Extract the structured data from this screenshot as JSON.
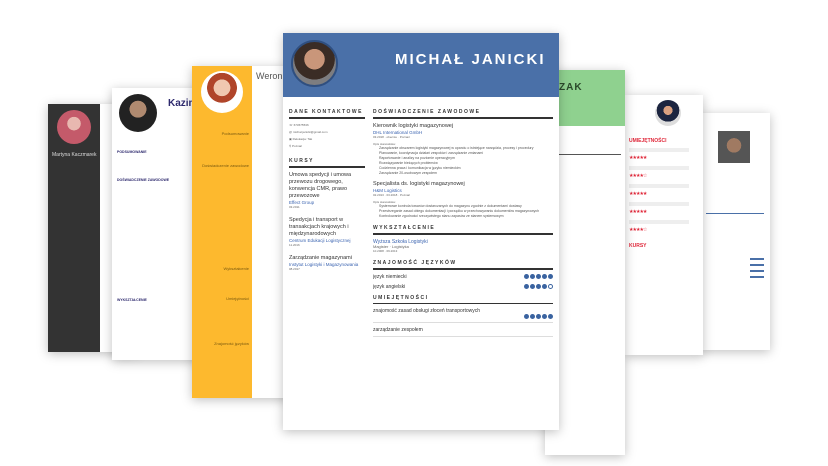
{
  "main_cv": {
    "name": "MICHAŁ JANICKI",
    "contact_title": "DANE KONTAKTOWE",
    "contact": [
      {
        "icon": "phone-icon",
        "text": "673675536"
      },
      {
        "icon": "at-icon",
        "text": "michal.janicki@gmail.com"
      },
      {
        "icon": "briefcase-icon",
        "text": "Relokacja: Tak"
      },
      {
        "icon": "location-icon",
        "text": "Poznań"
      }
    ],
    "courses_title": "KURSY",
    "courses": [
      {
        "name": "Umowa spedycji i umowa przewozu drogowego, konwencja CMR, prawo przewozowe",
        "org": "Effect Group",
        "date": "03.2011"
      },
      {
        "name": "Spedycja i transport w transakcjach krajowych i międzynarodowych",
        "org": "Centrum Edukacji Logistycznej",
        "date": "11.2016"
      },
      {
        "name": "Zarządzanie magazynami",
        "org": "Instytut Logistyki i Magazynowania",
        "date": "08.2017"
      }
    ],
    "experience_title": "DOŚWIADCZENIE ZAWODOWE",
    "jobs": [
      {
        "title": "Kierownik logistyki magazynowej",
        "company": "DHL International GmbH",
        "dates": "03.2018 · obecnie",
        "place": "Poznań",
        "desc_label": "Opis stanowiska:",
        "bullets": [
          "Zarządzanie obszarem logistyki magazynowej w oparciu o istniejące narzędzia, procesy i procedury",
          "Planowanie, koordynacja działań zespołów i zarządzanie zmianami",
          "Raportowanie i analizy na poziomie operacyjnym",
          "Rozwiązywanie bieżących problemów",
          "Codzienna praca i komunikacja w języku niemieckim",
          "Zarządzanie 20-osobowym zespołem"
        ]
      },
      {
        "title": "Specjalista ds. logistyki magazynowej",
        "company": "H&M Logistics",
        "dates": "02.2013 · 03.2018",
        "place": "Poznań",
        "desc_label": "Opis stanowiska:",
        "bullets": [
          "Systemowe kontrola towarów dostarczanych do magazynu zgodnie z dokumentami dostawy",
          "Przestrzeganie zasad obiegu dokumentacji i porządku w przechowywaniu dokumentów magazynowych",
          "Kontrolowanie zgodności rzeczywistego stanu zapasów ze stanem systemowym"
        ]
      }
    ],
    "education_title": "WYKSZTAŁCENIE",
    "education": {
      "school": "Wyższa Szkoła Logistyki",
      "degree": "Magister · Logistyka",
      "dates": "10.2008 · 09.2013"
    },
    "languages_title": "ZNAJOMOŚĆ JĘZYKÓW",
    "languages": [
      {
        "name": "język niemiecki",
        "level": 5
      },
      {
        "name": "język angielski",
        "level": 4
      }
    ],
    "skills_title": "UMIEJĘTNOŚCI",
    "skills": [
      {
        "name": "znajomość zasad obsługi złoceń transportowych",
        "level": 5
      },
      {
        "name": "zarządzanie zespołem"
      }
    ],
    "accent": "#4a70a8"
  },
  "cv_martyna": {
    "name": "Martyna Kaczmarek",
    "accent": "#333333"
  },
  "cv_kazim": {
    "name": "Kazim",
    "sections": [
      "PODSUMOWANIE",
      "DOŚWIADCZENIE ZAWODOWE",
      "WYKSZTAŁCENIE"
    ],
    "accent": "#2e2a6e"
  },
  "cv_weronika": {
    "name": "Weron",
    "sections": [
      "Podsumowanie",
      "Doświadczenie zawodowe",
      "Wykształcenie",
      "Umiejętności",
      "Znajomość języków"
    ],
    "accent": "#fdb92e"
  },
  "cv_green": {
    "name": "ZAK",
    "accent": "#8fd18f"
  },
  "cv_red": {
    "sections": [
      "UMIEJĘTNOŚCI",
      "KURSY"
    ],
    "skill_levels": [
      5,
      4,
      5,
      5,
      4
    ],
    "accent": "#e0283a"
  },
  "cv_right": {
    "accent": "#4a70a8"
  }
}
